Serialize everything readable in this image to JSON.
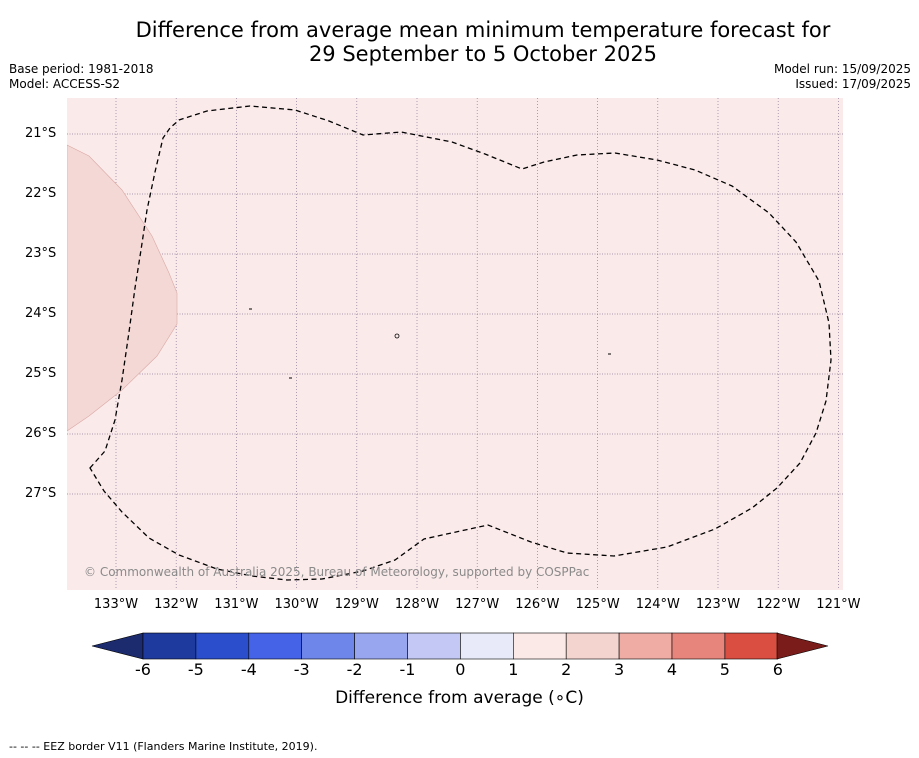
{
  "title": {
    "line1": "Difference from average mean minimum temperature forecast for",
    "line2": "29 September to 5 October 2025"
  },
  "meta_left": {
    "base_period": "Base period: 1981-2018",
    "model": "Model: ACCESS-S2"
  },
  "meta_right": {
    "model_run": "Model run: 15/09/2025",
    "issued": "Issued: 17/09/2025"
  },
  "map": {
    "latitudes": [
      "21°S",
      "22°S",
      "23°S",
      "24°S",
      "25°S",
      "26°S",
      "27°S"
    ],
    "longitudes": [
      "133°W",
      "132°W",
      "131°W",
      "130°W",
      "129°W",
      "128°W",
      "127°W",
      "126°W",
      "125°W",
      "124°W",
      "123°W",
      "122°W",
      "121°W"
    ],
    "copyright": "© Commonwealth of Australia 2025, Bureau of Meteorology, supported by COSPPac",
    "background_color": "#fbeaea",
    "warm_region_color": "#f4d8d5"
  },
  "colorbar": {
    "ticks": [
      "-6",
      "-5",
      "-4",
      "-3",
      "-2",
      "-1",
      "0",
      "1",
      "2",
      "3",
      "4",
      "5",
      "6"
    ],
    "colors": [
      "#1f3a9e",
      "#2b4fcc",
      "#4463e6",
      "#6e86ea",
      "#97a6ef",
      "#c3c9f4",
      "#e8eaf9",
      "#fbe9e7",
      "#f4d4cf",
      "#eeaca5",
      "#e7857c",
      "#da4d41",
      "#b02a22"
    ],
    "low_extend_color": "#1c2a6e",
    "high_extend_color": "#7a1c1a",
    "label": "Difference from average (∘C)"
  },
  "legend": {
    "eez": "-- -- -- EEZ border V11 (Flanders Marine Institute, 2019)."
  }
}
